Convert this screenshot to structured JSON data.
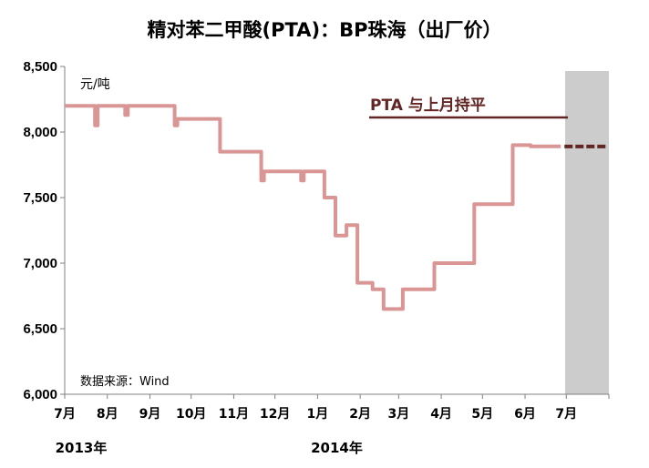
{
  "chart_data": {
    "type": "line",
    "title": "精对苯二甲酸(PTA)：BP珠海（出厂价）",
    "unit_label": "元/吨",
    "source": "数据来源：Wind",
    "annotation": "PTA 与上月持平",
    "ylim": [
      6000,
      8500
    ],
    "y_ticks": [
      "6,000",
      "6,500",
      "7,000",
      "7,500",
      "8,000",
      "8,500"
    ],
    "x_ticks": [
      "7月",
      "8月",
      "9月",
      "10月",
      "11月",
      "12月",
      "1月",
      "2月",
      "3月",
      "4月",
      "5月",
      "6月",
      "7月"
    ],
    "year_labels": [
      "2013年",
      "2014年"
    ],
    "colors": {
      "series": "#d99694",
      "annotation": "#632523",
      "forecast_band": "#cccccc",
      "axis": "#808080"
    },
    "series": [
      {
        "x": [
          "2013-07-01",
          "2013-07-23",
          "2013-07-23",
          "2013-07-25",
          "2013-07-25",
          "2013-08-14",
          "2013-08-14",
          "2013-08-16",
          "2013-08-16",
          "2013-09-19",
          "2013-09-19",
          "2013-09-21",
          "2013-09-21",
          "2013-10-22",
          "2013-10-22",
          "2013-11-21",
          "2013-11-21",
          "2013-11-23",
          "2013-11-23",
          "2013-12-20",
          "2013-12-20",
          "2013-12-22",
          "2013-12-22",
          "2014-01-06",
          "2014-01-06",
          "2014-01-14",
          "2014-01-14",
          "2014-01-22",
          "2014-01-22",
          "2014-01-30",
          "2014-01-30",
          "2014-02-10",
          "2014-02-10",
          "2014-02-18",
          "2014-02-18",
          "2014-03-04",
          "2014-03-04",
          "2014-03-27",
          "2014-03-27",
          "2014-04-25",
          "2014-04-25",
          "2014-05-23",
          "2014-05-23",
          "2014-06-05",
          "2014-06-05",
          "2014-06-12",
          "2014-06-12",
          "2014-06-16",
          "2014-06-16",
          "2014-06-27"
        ],
        "values": [
          8200,
          8200,
          8050,
          8050,
          8200,
          8200,
          8130,
          8130,
          8200,
          8200,
          8050,
          8050,
          8100,
          8100,
          7850,
          7850,
          7630,
          7630,
          7700,
          7700,
          7630,
          7630,
          7700,
          7700,
          7500,
          7500,
          7210,
          7210,
          7290,
          7290,
          6850,
          6850,
          6800,
          6800,
          6650,
          6650,
          6800,
          6800,
          7000,
          7000,
          7450,
          7450,
          7900,
          7900,
          7890,
          7890,
          7890,
          7890,
          7890,
          7890
        ]
      }
    ],
    "forecast": {
      "x": [
        "2014-07-01",
        "2014-07-31"
      ],
      "values": [
        7890,
        7890
      ]
    }
  }
}
